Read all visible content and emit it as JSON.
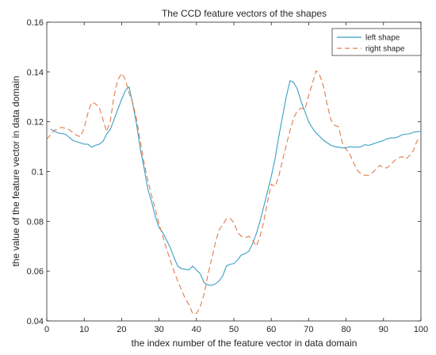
{
  "chart_data": {
    "type": "line",
    "title": "The CCD feature vectors of the shapes",
    "xlabel": "the index number of the feature vector in data domain",
    "ylabel": "the value of the feature vector in data domain",
    "xlim": [
      0,
      100
    ],
    "ylim": [
      0.04,
      0.16
    ],
    "xticks": [
      0,
      10,
      20,
      30,
      40,
      50,
      60,
      70,
      80,
      90,
      100
    ],
    "yticks": [
      0.04,
      0.06,
      0.08,
      0.1,
      0.12,
      0.14,
      0.16
    ],
    "ytick_labels": [
      "0.04",
      "0.06",
      "0.08",
      "0.1",
      "0.12",
      "0.14",
      "0.16"
    ],
    "grid": false,
    "legend_position": "top-right",
    "series": [
      {
        "name": "left shape",
        "color": "#3a9fc4",
        "style": "solid",
        "x": [
          1,
          3,
          5,
          7,
          9,
          10,
          11,
          12,
          13,
          14,
          15,
          16,
          17,
          18,
          19,
          20,
          21,
          22,
          23,
          24,
          25,
          26,
          27,
          28,
          29,
          30,
          31,
          32,
          33,
          34,
          35,
          36,
          37,
          38,
          39,
          40,
          41,
          42,
          43,
          44,
          45,
          46,
          47,
          48,
          49,
          50,
          51,
          52,
          53,
          54,
          55,
          56,
          57,
          58,
          59,
          60,
          61,
          62,
          63,
          64,
          65,
          66,
          67,
          68,
          69,
          70,
          71,
          72,
          73,
          74,
          75,
          76,
          77,
          78,
          79,
          80,
          81,
          82,
          83,
          84,
          85,
          86,
          87,
          88,
          89,
          90,
          91,
          92,
          93,
          94,
          95,
          96,
          97,
          98,
          99,
          100
        ],
        "y": [
          0.117,
          0.1155,
          0.115,
          0.1125,
          0.1115,
          0.111,
          0.111,
          0.1098,
          0.1105,
          0.111,
          0.112,
          0.115,
          0.117,
          0.121,
          0.125,
          0.129,
          0.1325,
          0.134,
          0.127,
          0.119,
          0.109,
          0.1015,
          0.093,
          0.088,
          0.082,
          0.0775,
          0.0755,
          0.0725,
          0.0695,
          0.0655,
          0.062,
          0.061,
          0.0608,
          0.0605,
          0.062,
          0.0605,
          0.059,
          0.0555,
          0.0545,
          0.0543,
          0.0548,
          0.056,
          0.058,
          0.062,
          0.0628,
          0.063,
          0.0645,
          0.0665,
          0.067,
          0.068,
          0.071,
          0.075,
          0.08,
          0.086,
          0.092,
          0.098,
          0.105,
          0.114,
          0.122,
          0.13,
          0.1365,
          0.1358,
          0.133,
          0.128,
          0.124,
          0.12,
          0.1175,
          0.1155,
          0.114,
          0.1125,
          0.1115,
          0.1105,
          0.11,
          0.1098,
          0.1095,
          0.1095,
          0.11,
          0.1098,
          0.1098,
          0.11,
          0.1108,
          0.1105,
          0.111,
          0.1115,
          0.112,
          0.1125,
          0.1132,
          0.1135,
          0.1135,
          0.114,
          0.1148,
          0.115,
          0.1152,
          0.1158,
          0.116,
          0.1162
        ]
      },
      {
        "name": "right shape",
        "color": "#e07b4f",
        "style": "dashed",
        "x": [
          0,
          2,
          4,
          6,
          8,
          9,
          10,
          11,
          12,
          13,
          14,
          15,
          16,
          17,
          18,
          19,
          20,
          21,
          22,
          23,
          24,
          25,
          26,
          27,
          28,
          29,
          30,
          31,
          32,
          33,
          34,
          35,
          36,
          37,
          38,
          39,
          40,
          41,
          42,
          43,
          44,
          45,
          46,
          47,
          48,
          49,
          50,
          51,
          52,
          53,
          54,
          55,
          56,
          57,
          58,
          59,
          60,
          61,
          62,
          63,
          64,
          65,
          66,
          67,
          68,
          69,
          70,
          71,
          72,
          73,
          74,
          75,
          76,
          77,
          78,
          79,
          80,
          81,
          82,
          83,
          84,
          85,
          86,
          87,
          88,
          89,
          90,
          91,
          92,
          93,
          94,
          95,
          96,
          97,
          98,
          99,
          100
        ],
        "y": [
          0.113,
          0.1165,
          0.1178,
          0.1168,
          0.1145,
          0.114,
          0.1175,
          0.1235,
          0.1278,
          0.1272,
          0.1258,
          0.121,
          0.116,
          0.1205,
          0.1305,
          0.1368,
          0.1395,
          0.137,
          0.1315,
          0.1275,
          0.121,
          0.112,
          0.1035,
          0.0965,
          0.0905,
          0.085,
          0.079,
          0.074,
          0.069,
          0.0645,
          0.06,
          0.056,
          0.0525,
          0.049,
          0.0465,
          0.043,
          0.043,
          0.0455,
          0.0505,
          0.058,
          0.0645,
          0.071,
          0.0765,
          0.0785,
          0.081,
          0.0812,
          0.0795,
          0.0755,
          0.074,
          0.0735,
          0.074,
          0.0725,
          0.07,
          0.074,
          0.08,
          0.088,
          0.095,
          0.094,
          0.098,
          0.1045,
          0.1105,
          0.1165,
          0.1215,
          0.1245,
          0.1255,
          0.125,
          0.1305,
          0.1355,
          0.1405,
          0.1385,
          0.134,
          0.1265,
          0.1205,
          0.1185,
          0.118,
          0.1115,
          0.109,
          0.107,
          0.1035,
          0.1005,
          0.099,
          0.0985,
          0.0985,
          0.0995,
          0.101,
          0.1025,
          0.1015,
          0.1015,
          0.103,
          0.1045,
          0.1055,
          0.106,
          0.105,
          0.1065,
          0.1085,
          0.1125,
          0.113
        ]
      }
    ]
  }
}
